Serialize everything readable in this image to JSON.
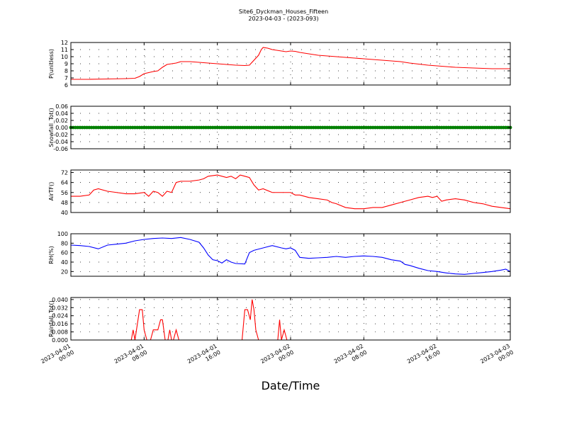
{
  "figure": {
    "title_lines": [
      "Site6_Dyckman_Houses_Fifteen",
      "2023-04-03 - (2023-093)"
    ],
    "xlabel": "Date/Time",
    "x_ticks": [
      {
        "t": 0,
        "line1": "2023-04-01",
        "line2": "00:00"
      },
      {
        "t": 8,
        "line1": "2023-04-01",
        "line2": "08:00"
      },
      {
        "t": 16,
        "line1": "2023-04-01",
        "line2": "16:00"
      },
      {
        "t": 24,
        "line1": "2023-04-02",
        "line2": "00:00"
      },
      {
        "t": 32,
        "line1": "2023-04-02",
        "line2": "08:00"
      },
      {
        "t": 40,
        "line1": "2023-04-02",
        "line2": "16:00"
      },
      {
        "t": 48,
        "line1": "2023-04-03",
        "line2": "00:00"
      }
    ]
  },
  "chart_data": [
    {
      "type": "line",
      "ylabel": "P(unitless)",
      "color": "#ff0000",
      "ylim": [
        6,
        12
      ],
      "yticks": [
        6,
        7,
        8,
        9,
        10,
        11,
        12
      ],
      "xlim": [
        0,
        48
      ],
      "grid": true,
      "points": [
        [
          0,
          6.8
        ],
        [
          2,
          6.8
        ],
        [
          4,
          6.85
        ],
        [
          6,
          6.9
        ],
        [
          7,
          6.95
        ],
        [
          7.5,
          7.2
        ],
        [
          8,
          7.6
        ],
        [
          9,
          7.9
        ],
        [
          9.5,
          8.0
        ],
        [
          10,
          8.5
        ],
        [
          10.5,
          8.9
        ],
        [
          11,
          9.0
        ],
        [
          11.5,
          9.1
        ],
        [
          12,
          9.3
        ],
        [
          13,
          9.3
        ],
        [
          14,
          9.2
        ],
        [
          15,
          9.1
        ],
        [
          16,
          9.0
        ],
        [
          17,
          8.9
        ],
        [
          18,
          8.8
        ],
        [
          19,
          8.75
        ],
        [
          19.5,
          8.8
        ],
        [
          20,
          9.5
        ],
        [
          20.5,
          10.2
        ],
        [
          20.8,
          11.0
        ],
        [
          21,
          11.3
        ],
        [
          21.5,
          11.2
        ],
        [
          22,
          11.0
        ],
        [
          23,
          10.8
        ],
        [
          23.5,
          10.7
        ],
        [
          24,
          10.8
        ],
        [
          24.5,
          10.75
        ],
        [
          25,
          10.6
        ],
        [
          26,
          10.4
        ],
        [
          27,
          10.2
        ],
        [
          28,
          10.1
        ],
        [
          29,
          10.0
        ],
        [
          30,
          9.9
        ],
        [
          31,
          9.8
        ],
        [
          32,
          9.7
        ],
        [
          33,
          9.6
        ],
        [
          34,
          9.5
        ],
        [
          35,
          9.4
        ],
        [
          36,
          9.3
        ],
        [
          37,
          9.1
        ],
        [
          38,
          8.95
        ],
        [
          39,
          8.8
        ],
        [
          40,
          8.7
        ],
        [
          41,
          8.6
        ],
        [
          42,
          8.5
        ],
        [
          43,
          8.45
        ],
        [
          44,
          8.4
        ],
        [
          45,
          8.35
        ],
        [
          46,
          8.3
        ],
        [
          47,
          8.3
        ],
        [
          48,
          8.3
        ]
      ]
    },
    {
      "type": "scatter",
      "ylabel": "Snowfall_Tot()",
      "color": "#008000",
      "ylim": [
        -0.06,
        0.06
      ],
      "yticks": [
        -0.06,
        -0.04,
        -0.02,
        0.0,
        0.02,
        0.04,
        0.06
      ],
      "ytick_labels": [
        "-0.06",
        "-0.04",
        "-0.02",
        "0.00",
        "0.02",
        "0.04",
        "0.06"
      ],
      "xlim": [
        0,
        48
      ],
      "grid": true,
      "constant_value": 0.0,
      "point_step": 0.25
    },
    {
      "type": "line",
      "ylabel": "AirTF()",
      "color": "#ff0000",
      "ylim": [
        40,
        74
      ],
      "yticks": [
        40,
        48,
        56,
        64,
        72
      ],
      "xlim": [
        0,
        48
      ],
      "grid": true,
      "points": [
        [
          0,
          53
        ],
        [
          1,
          53
        ],
        [
          2,
          54
        ],
        [
          2.5,
          58
        ],
        [
          3,
          59
        ],
        [
          4,
          57
        ],
        [
          5,
          56
        ],
        [
          6,
          55
        ],
        [
          7,
          55
        ],
        [
          8,
          56
        ],
        [
          8.5,
          53
        ],
        [
          9,
          57
        ],
        [
          9.5,
          56
        ],
        [
          10,
          53
        ],
        [
          10.5,
          57
        ],
        [
          11,
          56
        ],
        [
          11.5,
          64
        ],
        [
          12,
          65
        ],
        [
          13,
          65
        ],
        [
          14,
          66
        ],
        [
          14.5,
          67
        ],
        [
          15,
          69
        ],
        [
          16,
          70
        ],
        [
          17,
          68
        ],
        [
          17.5,
          69
        ],
        [
          18,
          67
        ],
        [
          18.5,
          70
        ],
        [
          19,
          69
        ],
        [
          19.5,
          68
        ],
        [
          20,
          62
        ],
        [
          20.5,
          58
        ],
        [
          21,
          59
        ],
        [
          22,
          56
        ],
        [
          23,
          56
        ],
        [
          24,
          56
        ],
        [
          24.5,
          54
        ],
        [
          25,
          54
        ],
        [
          26,
          52
        ],
        [
          27,
          51
        ],
        [
          28,
          50
        ],
        [
          28.5,
          48
        ],
        [
          29,
          47
        ],
        [
          30,
          44
        ],
        [
          31,
          43
        ],
        [
          32,
          43
        ],
        [
          33,
          44
        ],
        [
          34,
          44
        ],
        [
          35,
          46
        ],
        [
          36,
          48
        ],
        [
          37,
          50
        ],
        [
          38,
          52
        ],
        [
          39,
          53
        ],
        [
          39.5,
          52
        ],
        [
          40,
          53
        ],
        [
          40.5,
          49
        ],
        [
          41,
          50
        ],
        [
          42,
          51
        ],
        [
          43,
          50
        ],
        [
          44,
          48
        ],
        [
          45,
          47
        ],
        [
          46,
          45
        ],
        [
          47,
          44
        ],
        [
          48,
          43
        ]
      ]
    },
    {
      "type": "line",
      "ylabel": "RH(%)",
      "color": "#0000ff",
      "ylim": [
        10,
        100
      ],
      "yticks": [
        20,
        40,
        60,
        80,
        100
      ],
      "xlim": [
        0,
        48
      ],
      "grid": true,
      "points": [
        [
          0,
          76
        ],
        [
          1,
          75
        ],
        [
          2,
          73
        ],
        [
          3,
          68
        ],
        [
          4,
          76
        ],
        [
          5,
          78
        ],
        [
          6,
          80
        ],
        [
          7,
          85
        ],
        [
          8,
          88
        ],
        [
          9,
          90
        ],
        [
          10,
          91
        ],
        [
          11,
          90
        ],
        [
          12,
          92
        ],
        [
          13,
          88
        ],
        [
          14,
          82
        ],
        [
          14.5,
          70
        ],
        [
          15,
          55
        ],
        [
          15.5,
          45
        ],
        [
          16,
          43
        ],
        [
          16.5,
          38
        ],
        [
          17,
          45
        ],
        [
          17.5,
          40
        ],
        [
          18,
          37
        ],
        [
          19,
          36
        ],
        [
          19.5,
          60
        ],
        [
          20,
          65
        ],
        [
          21,
          70
        ],
        [
          22,
          75
        ],
        [
          23,
          70
        ],
        [
          23.5,
          68
        ],
        [
          24,
          70
        ],
        [
          24.5,
          65
        ],
        [
          25,
          50
        ],
        [
          26,
          48
        ],
        [
          27,
          49
        ],
        [
          28,
          50
        ],
        [
          29,
          52
        ],
        [
          30,
          50
        ],
        [
          31,
          52
        ],
        [
          32,
          53
        ],
        [
          33,
          52
        ],
        [
          34,
          50
        ],
        [
          35,
          45
        ],
        [
          36,
          42
        ],
        [
          36.5,
          35
        ],
        [
          37,
          33
        ],
        [
          38,
          27
        ],
        [
          39,
          22
        ],
        [
          40,
          20
        ],
        [
          41,
          17
        ],
        [
          42,
          15
        ],
        [
          43,
          14
        ],
        [
          44,
          16
        ],
        [
          45,
          18
        ],
        [
          46,
          20
        ],
        [
          47,
          23
        ],
        [
          47.5,
          25
        ],
        [
          48,
          20
        ]
      ]
    },
    {
      "type": "line",
      "ylabel": "Rainfall_Tot()",
      "color": "#ff0000",
      "ylim": [
        0,
        0.042
      ],
      "yticks": [
        0.0,
        0.008,
        0.016,
        0.024,
        0.032,
        0.04
      ],
      "ytick_labels": [
        "0.000",
        "0.008",
        "0.016",
        "0.024",
        "0.032",
        "0.040"
      ],
      "xlim": [
        0,
        48
      ],
      "grid": true,
      "points": [
        [
          0,
          0
        ],
        [
          6.6,
          0
        ],
        [
          6.8,
          0.01
        ],
        [
          7.0,
          0.0
        ],
        [
          7.5,
          0.03
        ],
        [
          7.8,
          0.03
        ],
        [
          8.0,
          0.01
        ],
        [
          8.3,
          0.0
        ],
        [
          8.7,
          0.0
        ],
        [
          9.0,
          0.01
        ],
        [
          9.5,
          0.01
        ],
        [
          9.8,
          0.02
        ],
        [
          10.0,
          0.02
        ],
        [
          10.3,
          0.0
        ],
        [
          10.6,
          0.0
        ],
        [
          10.8,
          0.01
        ],
        [
          11.0,
          0.0
        ],
        [
          11.2,
          0.0
        ],
        [
          11.5,
          0.01
        ],
        [
          11.8,
          0.0
        ],
        [
          18.7,
          0.0
        ],
        [
          19.0,
          0.03
        ],
        [
          19.3,
          0.03
        ],
        [
          19.6,
          0.02
        ],
        [
          19.8,
          0.04
        ],
        [
          20.0,
          0.03
        ],
        [
          20.2,
          0.01
        ],
        [
          20.5,
          0.0
        ],
        [
          22.6,
          0.0
        ],
        [
          22.8,
          0.02
        ],
        [
          23.0,
          0.0
        ],
        [
          23.3,
          0.01
        ],
        [
          23.6,
          0.0
        ],
        [
          48,
          0
        ]
      ]
    }
  ]
}
